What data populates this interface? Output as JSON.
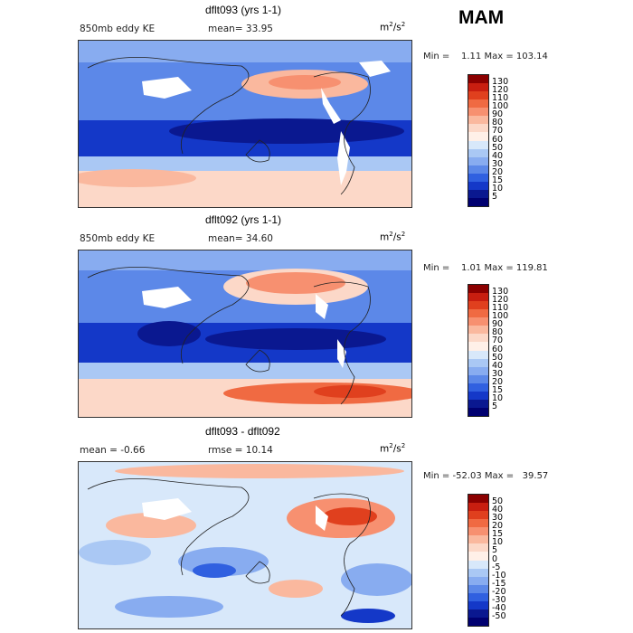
{
  "season": "MAM",
  "panels": [
    {
      "title": "dflt093 (yrs 1-1)",
      "left_label": "850mb eddy KE",
      "stat_label": "mean=  33.95",
      "units_base": "m",
      "units_sup1": "2",
      "units_mid": "/s",
      "units_sup2": "2",
      "minmax": "Min =    1.11 Max = 103.14",
      "levels": [
        "130",
        "120",
        "110",
        "100",
        "90",
        "80",
        "70",
        "60",
        "50",
        "40",
        "30",
        "20",
        "15",
        "10",
        "5"
      ],
      "colors": [
        "#8b0000",
        "#c81e10",
        "#e0401e",
        "#f06a42",
        "#f79070",
        "#fab89e",
        "#fcd8c8",
        "#fff0e8",
        "#d8e8fa",
        "#aac8f4",
        "#88acf0",
        "#5c88e8",
        "#3060e0",
        "#1438c8",
        "#0a1890",
        "#000070"
      ]
    },
    {
      "title": "dflt092 (yrs 1-1)",
      "left_label": "850mb eddy KE",
      "stat_label": "mean=  34.60",
      "units_base": "m",
      "units_sup1": "2",
      "units_mid": "/s",
      "units_sup2": "2",
      "minmax": "Min =    1.01 Max = 119.81",
      "levels": [
        "130",
        "120",
        "110",
        "100",
        "90",
        "80",
        "70",
        "60",
        "50",
        "40",
        "30",
        "20",
        "15",
        "10",
        "5"
      ],
      "colors": [
        "#8b0000",
        "#c81e10",
        "#e0401e",
        "#f06a42",
        "#f79070",
        "#fab89e",
        "#fcd8c8",
        "#fff0e8",
        "#d8e8fa",
        "#aac8f4",
        "#88acf0",
        "#5c88e8",
        "#3060e0",
        "#1438c8",
        "#0a1890",
        "#000070"
      ]
    },
    {
      "title": "dflt093 - dflt092",
      "left_label": "mean =   -0.66",
      "stat_label": "rmse =   10.14",
      "units_base": "m",
      "units_sup1": "2",
      "units_mid": "/s",
      "units_sup2": "2",
      "minmax": "Min = -52.03 Max =   39.57",
      "levels": [
        "50",
        "40",
        "30",
        "20",
        "15",
        "10",
        "5",
        "0",
        "-5",
        "-10",
        "-15",
        "-20",
        "-30",
        "-40",
        "-50"
      ],
      "colors": [
        "#8b0000",
        "#c81e10",
        "#e0401e",
        "#f06a42",
        "#f79070",
        "#fab89e",
        "#fcd8c8",
        "#fff0e8",
        "#d8e8fa",
        "#aac8f4",
        "#88acf0",
        "#5c88e8",
        "#3060e0",
        "#1438c8",
        "#0a1890",
        "#000070"
      ]
    }
  ]
}
